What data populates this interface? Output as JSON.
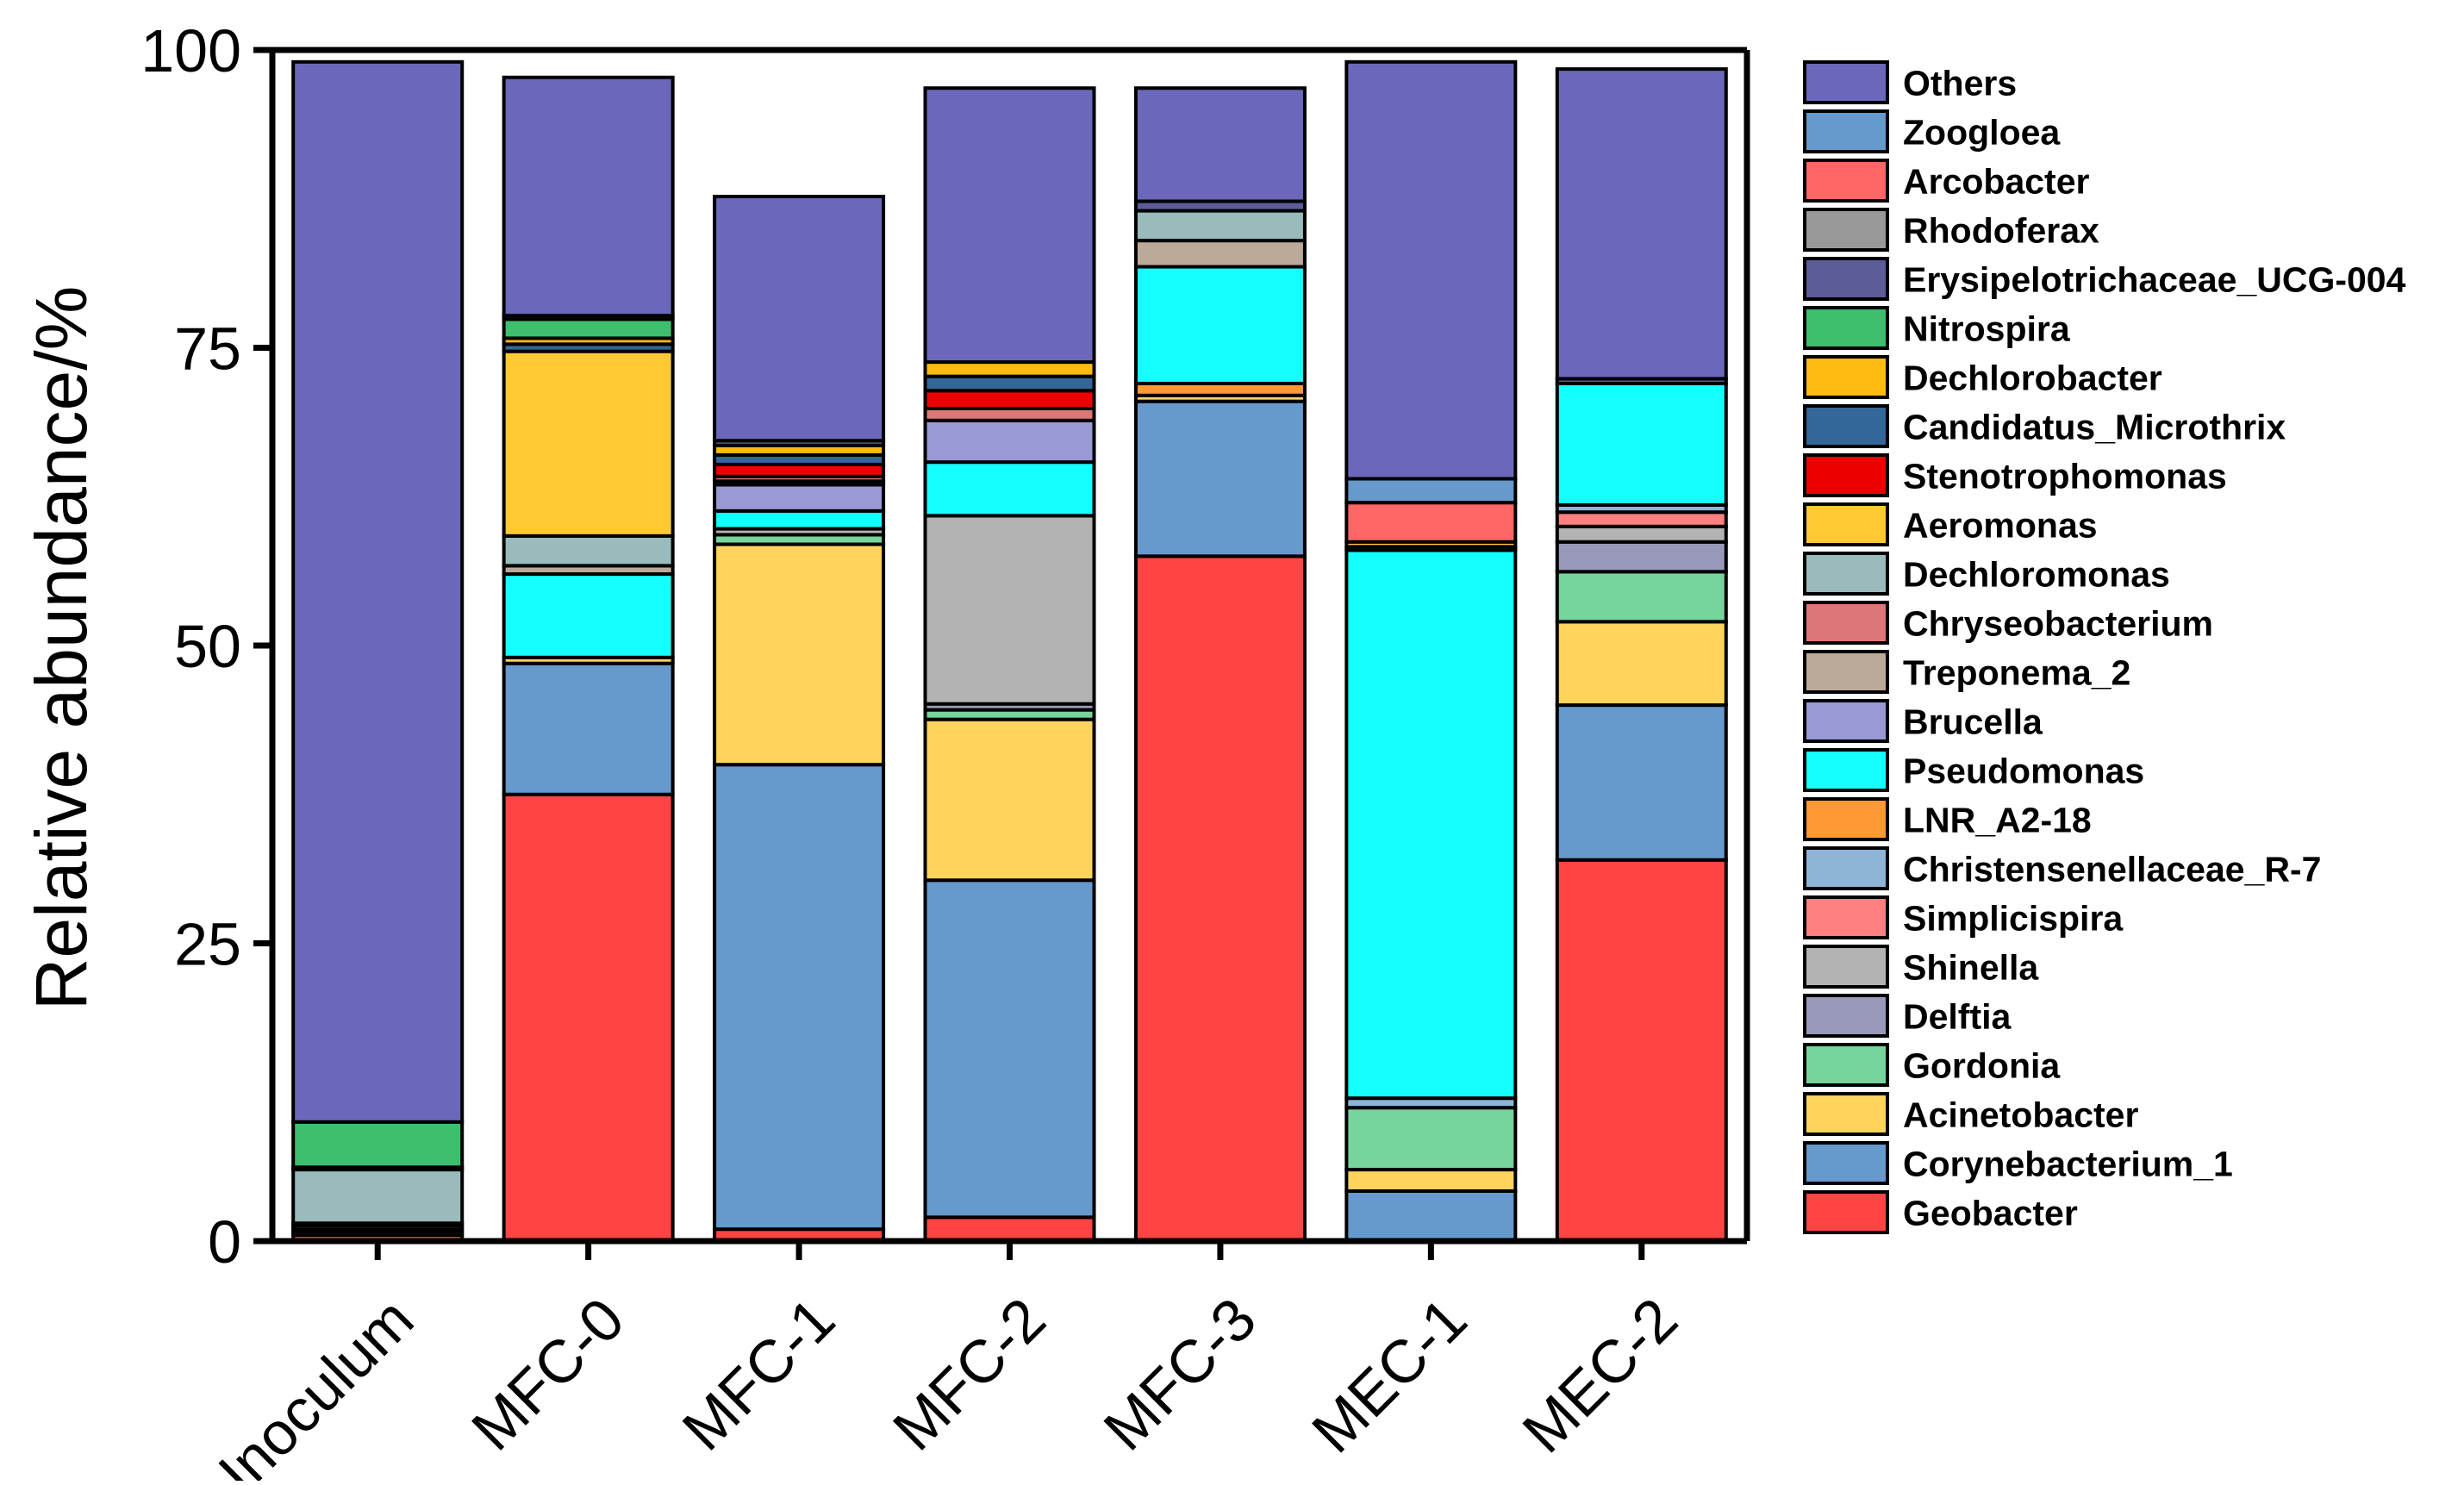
{
  "chart_data": {
    "type": "bar",
    "stacked": true,
    "title": "",
    "xlabel": "",
    "ylabel": "Relative abundance/%",
    "ylim": [
      0,
      100
    ],
    "yticks": [
      0,
      25,
      50,
      75,
      100
    ],
    "legend_position": "right",
    "categories": [
      "Inoculum",
      "MFC-0",
      "MFC-1",
      "MFC-2",
      "MFC-3",
      "MEC-1",
      "MEC-2"
    ],
    "series": [
      {
        "name": "Geobacter",
        "color": "#ff4444",
        "values": [
          0.5,
          37.5,
          1.0,
          2.0,
          57.5,
          0,
          32.0
        ]
      },
      {
        "name": "Corynebacterium_1",
        "color": "#6699cc",
        "values": [
          0.3,
          11.0,
          39.0,
          28.3,
          13.0,
          4.2,
          13.0
        ]
      },
      {
        "name": "Acinetobacter",
        "color": "#ffd45c",
        "values": [
          0.2,
          0.5,
          18.5,
          13.5,
          0.5,
          1.8,
          7.0
        ]
      },
      {
        "name": "Gordonia",
        "color": "#77d49c",
        "values": [
          0,
          0,
          0.8,
          0.8,
          0,
          5.2,
          4.2
        ]
      },
      {
        "name": "Delftia",
        "color": "#9999bb",
        "values": [
          0,
          0,
          0,
          0.5,
          0,
          0,
          2.5
        ]
      },
      {
        "name": "Shinella",
        "color": "#b3b3b3",
        "values": [
          0,
          0,
          0.5,
          15.8,
          0,
          0,
          1.3
        ]
      },
      {
        "name": "Simplicispira",
        "color": "#ff8080",
        "values": [
          0,
          0,
          0,
          0,
          0,
          0,
          1.2
        ]
      },
      {
        "name": "Christensenellaceae_R-7",
        "color": "#8eb4d8",
        "values": [
          0,
          0,
          0,
          0,
          0,
          0.8,
          0.6
        ]
      },
      {
        "name": "LNR_A2-18",
        "color": "#ff9933",
        "values": [
          0,
          0,
          0,
          0,
          1.0,
          0,
          0
        ]
      },
      {
        "name": "Pseudomonas",
        "color": "#14ffff",
        "values": [
          0,
          7.0,
          1.5,
          4.5,
          9.8,
          46.0,
          10.2
        ]
      },
      {
        "name": "Brucella",
        "color": "#9999d6",
        "values": [
          0,
          0,
          2.2,
          3.5,
          0,
          0,
          0
        ]
      },
      {
        "name": "Treponema_2",
        "color": "#bbaa99",
        "values": [
          0.3,
          0.7,
          0.3,
          0,
          2.2,
          0.3,
          0
        ]
      },
      {
        "name": "Chryseobacterium",
        "color": "#dd7777",
        "values": [
          0.2,
          0,
          0.4,
          1.0,
          0,
          0,
          0
        ]
      },
      {
        "name": "Dechloromonas",
        "color": "#99bbbb",
        "values": [
          4.5,
          2.5,
          0,
          0,
          2.5,
          0,
          0
        ]
      },
      {
        "name": "Aeromonas",
        "color": "#ffc933",
        "values": [
          0,
          15.5,
          0,
          0,
          0,
          0.4,
          0
        ]
      },
      {
        "name": "Stenotrophomonas",
        "color": "#ee0000",
        "values": [
          0,
          0,
          1.0,
          1.5,
          0,
          0,
          0
        ]
      },
      {
        "name": "Candidatus_Microthrix",
        "color": "#336699",
        "values": [
          0.2,
          0.6,
          0.8,
          1.2,
          0,
          0,
          0
        ]
      },
      {
        "name": "Dechlorobacter",
        "color": "#ffbb11",
        "values": [
          0,
          0.5,
          0.8,
          1.2,
          0,
          0,
          0
        ]
      },
      {
        "name": "Nitrospira",
        "color": "#3dbf6e",
        "values": [
          3.8,
          1.6,
          0,
          0,
          0,
          0,
          0
        ]
      },
      {
        "name": "Erysipelotrichaceae_UCG-004",
        "color": "#5c5c99",
        "values": [
          0,
          0.3,
          0.4,
          0,
          0.8,
          0,
          0.4
        ]
      },
      {
        "name": "Rhodoferax",
        "color": "#999999",
        "values": [
          0,
          0,
          0,
          0,
          0,
          0,
          0
        ]
      },
      {
        "name": "Arcobacter",
        "color": "#ff6666",
        "values": [
          0,
          0,
          0,
          0,
          0,
          3.3,
          0
        ]
      },
      {
        "name": "Zoogloea",
        "color": "#6699cc",
        "values": [
          0,
          0,
          0,
          0,
          0,
          2.0,
          0
        ]
      },
      {
        "name": "Others",
        "color": "#6b68bb",
        "values": [
          89.0,
          20.0,
          20.5,
          23.0,
          9.5,
          35.0,
          26.0
        ]
      }
    ]
  }
}
